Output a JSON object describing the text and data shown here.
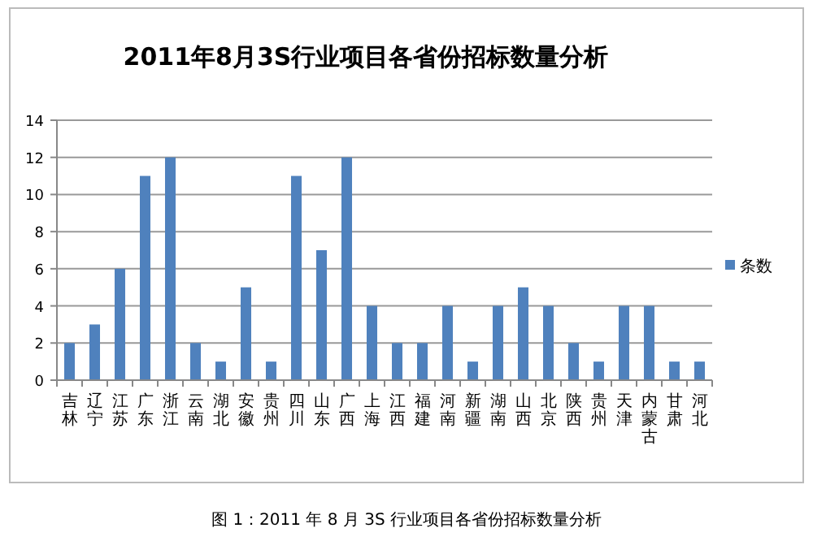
{
  "chart_data": {
    "type": "bar",
    "title": "2011年8月3S行业项目各省份招标数量分析",
    "categories": [
      "吉林",
      "辽宁",
      "江苏",
      "广东",
      "浙江",
      "云南",
      "湖北",
      "安徽",
      "贵州",
      "四川",
      "山东",
      "广西",
      "上海",
      "江西",
      "福建",
      "河南",
      "新疆",
      "湖南",
      "山西",
      "北京",
      "陕西",
      "贵州",
      "天津",
      "内蒙古",
      "甘肃",
      "河北"
    ],
    "series": [
      {
        "name": "条数",
        "color": "#4f81bd",
        "values": [
          2,
          3,
          6,
          11,
          12,
          2,
          1,
          5,
          1,
          11,
          7,
          12,
          4,
          2,
          2,
          4,
          1,
          4,
          5,
          4,
          2,
          1,
          4,
          4,
          1,
          1
        ]
      }
    ],
    "ylim": [
      0,
      14
    ],
    "yticks": [
      0,
      2,
      4,
      6,
      8,
      10,
      12,
      14
    ],
    "grid": "y",
    "legend": "right",
    "annotations": [
      "图 1：2011 年 8 月 3S 行业项目各省份招标数量分析"
    ]
  }
}
